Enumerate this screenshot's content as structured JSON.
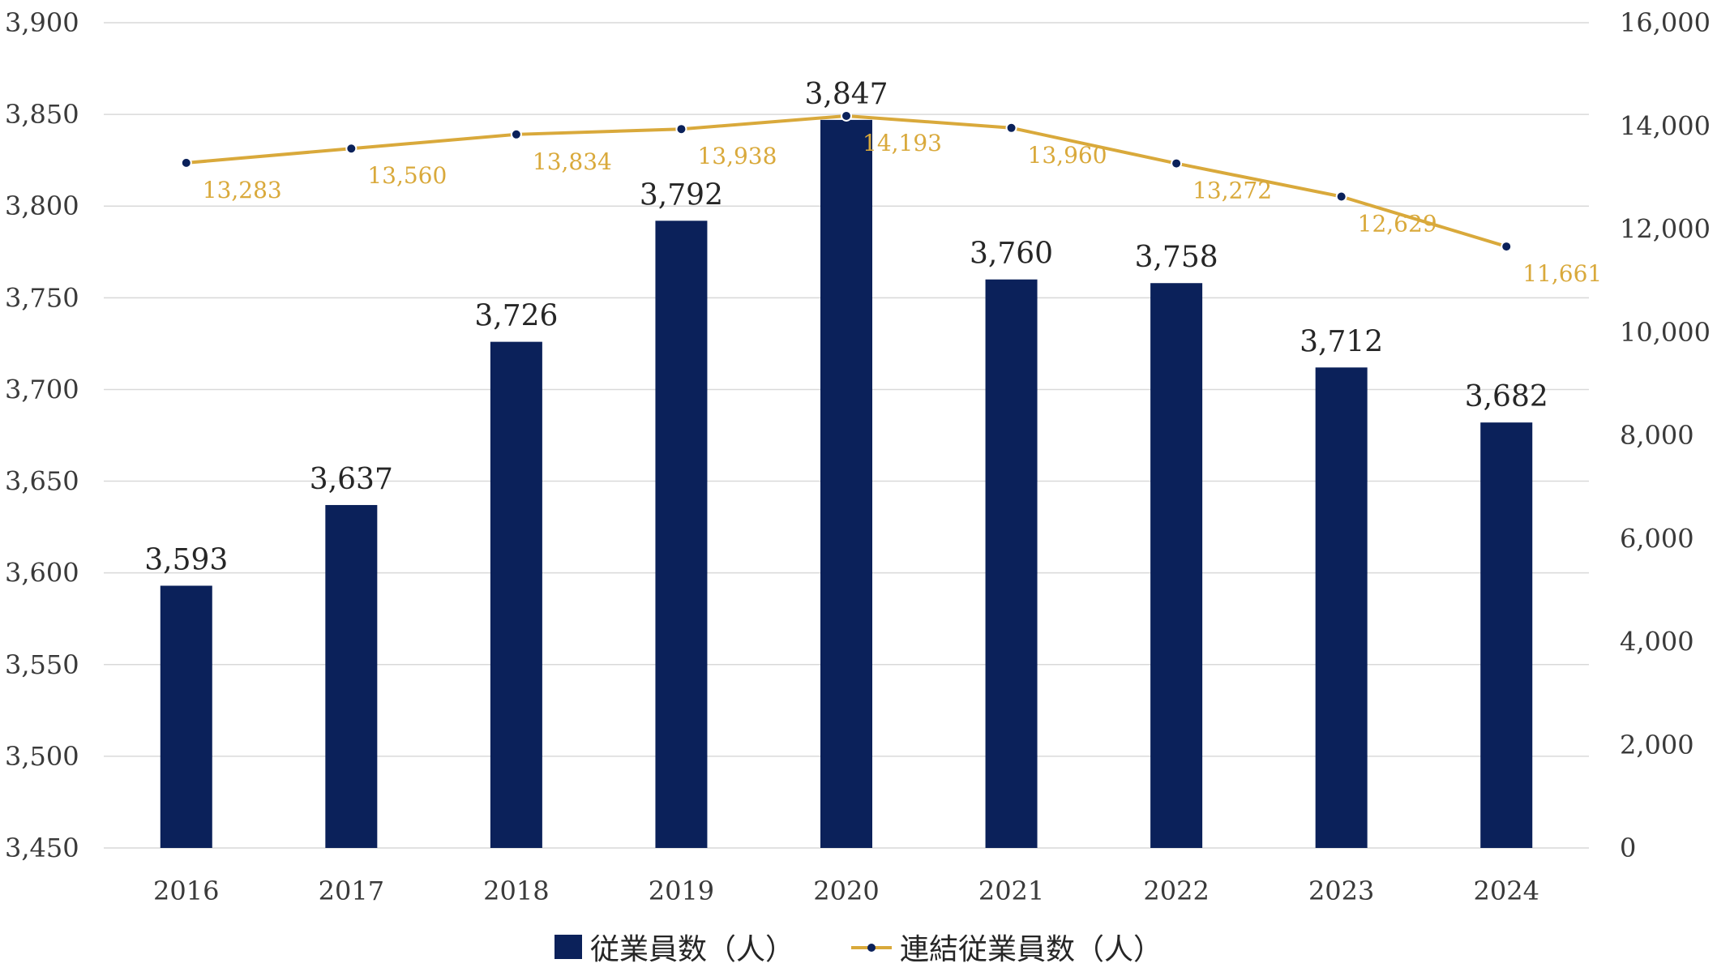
{
  "colors": {
    "bar": "#0b215a",
    "line": "#d9a93b",
    "marker": "#0b215a",
    "grid": "#d9d9d9",
    "line_label": "#d9a93b",
    "bar_label": "#262626"
  },
  "chart_data": {
    "type": "bar",
    "categories": [
      "2016",
      "2017",
      "2018",
      "2019",
      "2020",
      "2021",
      "2022",
      "2023",
      "2024"
    ],
    "series": [
      {
        "name": "従業員数（人）",
        "type": "bar",
        "axis": "left",
        "values": [
          3593,
          3637,
          3726,
          3792,
          3847,
          3760,
          3758,
          3712,
          3682
        ],
        "labels": [
          "3,593",
          "3,637",
          "3,726",
          "3,792",
          "3,847",
          "3,760",
          "3,758",
          "3,712",
          "3,682"
        ]
      },
      {
        "name": "連結従業員数（人）",
        "type": "line",
        "axis": "right",
        "values": [
          13283,
          13560,
          13834,
          13938,
          14193,
          13960,
          13272,
          12629,
          11661
        ],
        "labels": [
          "13,283",
          "13,560",
          "13,834",
          "13,938",
          "14,193",
          "13,960",
          "13,272",
          "12,629",
          "11,661"
        ]
      }
    ],
    "y_left": {
      "min": 3450,
      "max": 3900,
      "ticks": [
        3450,
        3500,
        3550,
        3600,
        3650,
        3700,
        3750,
        3800,
        3850,
        3900
      ],
      "tick_labels": [
        "3,450",
        "3,500",
        "3,550",
        "3,600",
        "3,650",
        "3,700",
        "3,750",
        "3,800",
        "3,850",
        "3,900"
      ]
    },
    "y_right": {
      "min": 0,
      "max": 16000,
      "ticks": [
        0,
        2000,
        4000,
        6000,
        8000,
        10000,
        12000,
        14000,
        16000
      ],
      "tick_labels": [
        "0",
        "2,000",
        "4,000",
        "6,000",
        "8,000",
        "10,000",
        "12,000",
        "14,000",
        "16,000"
      ]
    },
    "grid": true,
    "legend_position": "bottom"
  }
}
